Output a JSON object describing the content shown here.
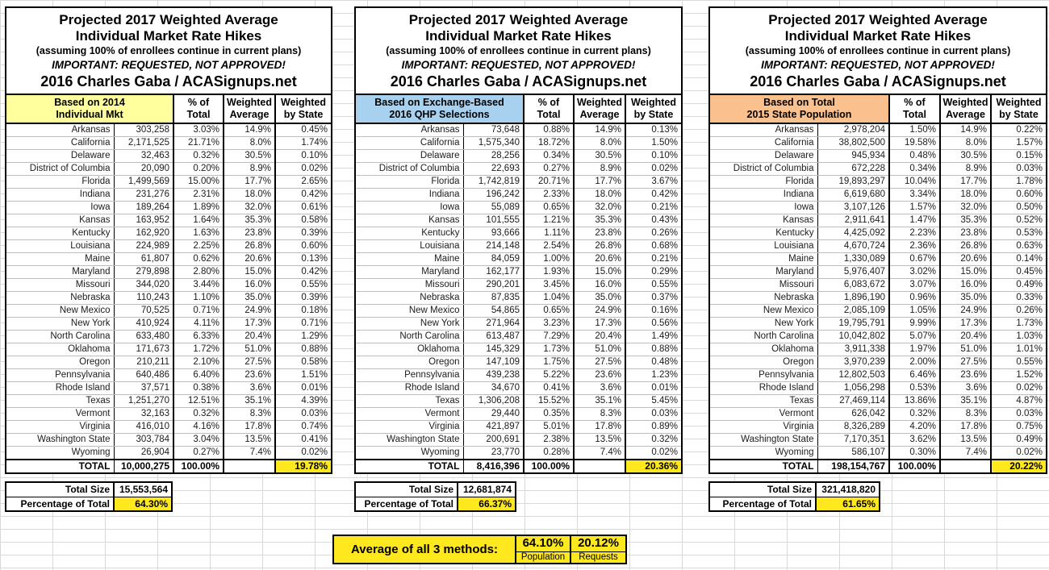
{
  "colors": {
    "highlight_yellow": "#ffe81e",
    "basis_individual_mkt": "#ffff9e",
    "basis_qhp": "#a8d1f0",
    "basis_population": "#fac08e"
  },
  "titles": {
    "line1": "Projected 2017 Weighted Average",
    "line2": "Individual Market Rate Hikes",
    "line3": "(assuming 100% of enrollees continue in current plans)",
    "line4": "IMPORTANT: REQUESTED, NOT APPROVED!",
    "line5": "2016 Charles Gaba / ACASignups.net"
  },
  "columns": {
    "pct": [
      "% of",
      "Total"
    ],
    "wavg": [
      "Weighted",
      "Average"
    ],
    "wstate": [
      "Weighted",
      "by State"
    ]
  },
  "panels": [
    {
      "basis_line1": "Based on 2014",
      "basis_line2": "Individual Mkt",
      "basis_color": "#ffff9e",
      "rows": [
        {
          "state": "Arkansas",
          "size": "303,258",
          "pct": "3.03%",
          "wavg": "14.9%",
          "wstate": "0.45%"
        },
        {
          "state": "California",
          "size": "2,171,525",
          "pct": "21.71%",
          "wavg": "8.0%",
          "wstate": "1.74%"
        },
        {
          "state": "Delaware",
          "size": "32,463",
          "pct": "0.32%",
          "wavg": "30.5%",
          "wstate": "0.10%"
        },
        {
          "state": "District of Columbia",
          "size": "20,090",
          "pct": "0.20%",
          "wavg": "8.9%",
          "wstate": "0.02%"
        },
        {
          "state": "Florida",
          "size": "1,499,569",
          "pct": "15.00%",
          "wavg": "17.7%",
          "wstate": "2.65%"
        },
        {
          "state": "Indiana",
          "size": "231,276",
          "pct": "2.31%",
          "wavg": "18.0%",
          "wstate": "0.42%"
        },
        {
          "state": "Iowa",
          "size": "189,264",
          "pct": "1.89%",
          "wavg": "32.0%",
          "wstate": "0.61%"
        },
        {
          "state": "Kansas",
          "size": "163,952",
          "pct": "1.64%",
          "wavg": "35.3%",
          "wstate": "0.58%"
        },
        {
          "state": "Kentucky",
          "size": "162,920",
          "pct": "1.63%",
          "wavg": "23.8%",
          "wstate": "0.39%"
        },
        {
          "state": "Louisiana",
          "size": "224,989",
          "pct": "2.25%",
          "wavg": "26.8%",
          "wstate": "0.60%"
        },
        {
          "state": "Maine",
          "size": "61,807",
          "pct": "0.62%",
          "wavg": "20.6%",
          "wstate": "0.13%"
        },
        {
          "state": "Maryland",
          "size": "279,898",
          "pct": "2.80%",
          "wavg": "15.0%",
          "wstate": "0.42%"
        },
        {
          "state": "Missouri",
          "size": "344,020",
          "pct": "3.44%",
          "wavg": "16.0%",
          "wstate": "0.55%"
        },
        {
          "state": "Nebraska",
          "size": "110,243",
          "pct": "1.10%",
          "wavg": "35.0%",
          "wstate": "0.39%"
        },
        {
          "state": "New Mexico",
          "size": "70,525",
          "pct": "0.71%",
          "wavg": "24.9%",
          "wstate": "0.18%"
        },
        {
          "state": "New York",
          "size": "410,924",
          "pct": "4.11%",
          "wavg": "17.3%",
          "wstate": "0.71%"
        },
        {
          "state": "North Carolina",
          "size": "633,480",
          "pct": "6.33%",
          "wavg": "20.4%",
          "wstate": "1.29%"
        },
        {
          "state": "Oklahoma",
          "size": "171,673",
          "pct": "1.72%",
          "wavg": "51.0%",
          "wstate": "0.88%"
        },
        {
          "state": "Oregon",
          "size": "210,211",
          "pct": "2.10%",
          "wavg": "27.5%",
          "wstate": "0.58%"
        },
        {
          "state": "Pennsylvania",
          "size": "640,486",
          "pct": "6.40%",
          "wavg": "23.6%",
          "wstate": "1.51%"
        },
        {
          "state": "Rhode Island",
          "size": "37,571",
          "pct": "0.38%",
          "wavg": "3.6%",
          "wstate": "0.01%"
        },
        {
          "state": "Texas",
          "size": "1,251,270",
          "pct": "12.51%",
          "wavg": "35.1%",
          "wstate": "4.39%"
        },
        {
          "state": "Vermont",
          "size": "32,163",
          "pct": "0.32%",
          "wavg": "8.3%",
          "wstate": "0.03%"
        },
        {
          "state": "Virginia",
          "size": "416,010",
          "pct": "4.16%",
          "wavg": "17.8%",
          "wstate": "0.74%"
        },
        {
          "state": "Washington State",
          "size": "303,784",
          "pct": "3.04%",
          "wavg": "13.5%",
          "wstate": "0.41%"
        },
        {
          "state": "Wyoming",
          "size": "26,904",
          "pct": "0.27%",
          "wavg": "7.4%",
          "wstate": "0.02%"
        }
      ],
      "total": {
        "label": "TOTAL",
        "size": "10,000,275",
        "pct": "100.00%",
        "wavg": "",
        "wstate": "19.78%"
      },
      "summary": {
        "size_label": "Total Size",
        "size_value": "15,553,564",
        "pct_label": "Percentage of Total",
        "pct_value": "64.30%"
      }
    },
    {
      "basis_line1": "Based on Exchange-Based",
      "basis_line2": "2016 QHP Selections",
      "basis_color": "#a8d1f0",
      "rows": [
        {
          "state": "Arkansas",
          "size": "73,648",
          "pct": "0.88%",
          "wavg": "14.9%",
          "wstate": "0.13%"
        },
        {
          "state": "California",
          "size": "1,575,340",
          "pct": "18.72%",
          "wavg": "8.0%",
          "wstate": "1.50%"
        },
        {
          "state": "Delaware",
          "size": "28,256",
          "pct": "0.34%",
          "wavg": "30.5%",
          "wstate": "0.10%"
        },
        {
          "state": "District of Columbia",
          "size": "22,693",
          "pct": "0.27%",
          "wavg": "8.9%",
          "wstate": "0.02%"
        },
        {
          "state": "Florida",
          "size": "1,742,819",
          "pct": "20.71%",
          "wavg": "17.7%",
          "wstate": "3.67%"
        },
        {
          "state": "Indiana",
          "size": "196,242",
          "pct": "2.33%",
          "wavg": "18.0%",
          "wstate": "0.42%"
        },
        {
          "state": "Iowa",
          "size": "55,089",
          "pct": "0.65%",
          "wavg": "32.0%",
          "wstate": "0.21%"
        },
        {
          "state": "Kansas",
          "size": "101,555",
          "pct": "1.21%",
          "wavg": "35.3%",
          "wstate": "0.43%"
        },
        {
          "state": "Kentucky",
          "size": "93,666",
          "pct": "1.11%",
          "wavg": "23.8%",
          "wstate": "0.26%"
        },
        {
          "state": "Louisiana",
          "size": "214,148",
          "pct": "2.54%",
          "wavg": "26.8%",
          "wstate": "0.68%"
        },
        {
          "state": "Maine",
          "size": "84,059",
          "pct": "1.00%",
          "wavg": "20.6%",
          "wstate": "0.21%"
        },
        {
          "state": "Maryland",
          "size": "162,177",
          "pct": "1.93%",
          "wavg": "15.0%",
          "wstate": "0.29%"
        },
        {
          "state": "Missouri",
          "size": "290,201",
          "pct": "3.45%",
          "wavg": "16.0%",
          "wstate": "0.55%"
        },
        {
          "state": "Nebraska",
          "size": "87,835",
          "pct": "1.04%",
          "wavg": "35.0%",
          "wstate": "0.37%"
        },
        {
          "state": "New Mexico",
          "size": "54,865",
          "pct": "0.65%",
          "wavg": "24.9%",
          "wstate": "0.16%"
        },
        {
          "state": "New York",
          "size": "271,964",
          "pct": "3.23%",
          "wavg": "17.3%",
          "wstate": "0.56%"
        },
        {
          "state": "North Carolina",
          "size": "613,487",
          "pct": "7.29%",
          "wavg": "20.4%",
          "wstate": "1.49%"
        },
        {
          "state": "Oklahoma",
          "size": "145,329",
          "pct": "1.73%",
          "wavg": "51.0%",
          "wstate": "0.88%"
        },
        {
          "state": "Oregon",
          "size": "147,109",
          "pct": "1.75%",
          "wavg": "27.5%",
          "wstate": "0.48%"
        },
        {
          "state": "Pennsylvania",
          "size": "439,238",
          "pct": "5.22%",
          "wavg": "23.6%",
          "wstate": "1.23%"
        },
        {
          "state": "Rhode Island",
          "size": "34,670",
          "pct": "0.41%",
          "wavg": "3.6%",
          "wstate": "0.01%"
        },
        {
          "state": "Texas",
          "size": "1,306,208",
          "pct": "15.52%",
          "wavg": "35.1%",
          "wstate": "5.45%"
        },
        {
          "state": "Vermont",
          "size": "29,440",
          "pct": "0.35%",
          "wavg": "8.3%",
          "wstate": "0.03%"
        },
        {
          "state": "Virginia",
          "size": "421,897",
          "pct": "5.01%",
          "wavg": "17.8%",
          "wstate": "0.89%"
        },
        {
          "state": "Washington State",
          "size": "200,691",
          "pct": "2.38%",
          "wavg": "13.5%",
          "wstate": "0.32%"
        },
        {
          "state": "Wyoming",
          "size": "23,770",
          "pct": "0.28%",
          "wavg": "7.4%",
          "wstate": "0.02%"
        }
      ],
      "total": {
        "label": "TOTAL",
        "size": "8,416,396",
        "pct": "100.00%",
        "wavg": "",
        "wstate": "20.36%"
      },
      "summary": {
        "size_label": "Total Size",
        "size_value": "12,681,874",
        "pct_label": "Percentage of Total",
        "pct_value": "66.37%"
      }
    },
    {
      "basis_line1": "Based on Total",
      "basis_line2": "2015 State Population",
      "basis_color": "#fac08e",
      "rows": [
        {
          "state": "Arkansas",
          "size": "2,978,204",
          "pct": "1.50%",
          "wavg": "14.9%",
          "wstate": "0.22%"
        },
        {
          "state": "California",
          "size": "38,802,500",
          "pct": "19.58%",
          "wavg": "8.0%",
          "wstate": "1.57%"
        },
        {
          "state": "Delaware",
          "size": "945,934",
          "pct": "0.48%",
          "wavg": "30.5%",
          "wstate": "0.15%"
        },
        {
          "state": "District of Columbia",
          "size": "672,228",
          "pct": "0.34%",
          "wavg": "8.9%",
          "wstate": "0.03%"
        },
        {
          "state": "Florida",
          "size": "19,893,297",
          "pct": "10.04%",
          "wavg": "17.7%",
          "wstate": "1.78%"
        },
        {
          "state": "Indiana",
          "size": "6,619,680",
          "pct": "3.34%",
          "wavg": "18.0%",
          "wstate": "0.60%"
        },
        {
          "state": "Iowa",
          "size": "3,107,126",
          "pct": "1.57%",
          "wavg": "32.0%",
          "wstate": "0.50%"
        },
        {
          "state": "Kansas",
          "size": "2,911,641",
          "pct": "1.47%",
          "wavg": "35.3%",
          "wstate": "0.52%"
        },
        {
          "state": "Kentucky",
          "size": "4,425,092",
          "pct": "2.23%",
          "wavg": "23.8%",
          "wstate": "0.53%"
        },
        {
          "state": "Louisiana",
          "size": "4,670,724",
          "pct": "2.36%",
          "wavg": "26.8%",
          "wstate": "0.63%"
        },
        {
          "state": "Maine",
          "size": "1,330,089",
          "pct": "0.67%",
          "wavg": "20.6%",
          "wstate": "0.14%"
        },
        {
          "state": "Maryland",
          "size": "5,976,407",
          "pct": "3.02%",
          "wavg": "15.0%",
          "wstate": "0.45%"
        },
        {
          "state": "Missouri",
          "size": "6,083,672",
          "pct": "3.07%",
          "wavg": "16.0%",
          "wstate": "0.49%"
        },
        {
          "state": "Nebraska",
          "size": "1,896,190",
          "pct": "0.96%",
          "wavg": "35.0%",
          "wstate": "0.33%"
        },
        {
          "state": "New Mexico",
          "size": "2,085,109",
          "pct": "1.05%",
          "wavg": "24.9%",
          "wstate": "0.26%"
        },
        {
          "state": "New York",
          "size": "19,795,791",
          "pct": "9.99%",
          "wavg": "17.3%",
          "wstate": "1.73%"
        },
        {
          "state": "North Carolina",
          "size": "10,042,802",
          "pct": "5.07%",
          "wavg": "20.4%",
          "wstate": "1.03%"
        },
        {
          "state": "Oklahoma",
          "size": "3,911,338",
          "pct": "1.97%",
          "wavg": "51.0%",
          "wstate": "1.01%"
        },
        {
          "state": "Oregon",
          "size": "3,970,239",
          "pct": "2.00%",
          "wavg": "27.5%",
          "wstate": "0.55%"
        },
        {
          "state": "Pennsylvania",
          "size": "12,802,503",
          "pct": "6.46%",
          "wavg": "23.6%",
          "wstate": "1.52%"
        },
        {
          "state": "Rhode Island",
          "size": "1,056,298",
          "pct": "0.53%",
          "wavg": "3.6%",
          "wstate": "0.02%"
        },
        {
          "state": "Texas",
          "size": "27,469,114",
          "pct": "13.86%",
          "wavg": "35.1%",
          "wstate": "4.87%"
        },
        {
          "state": "Vermont",
          "size": "626,042",
          "pct": "0.32%",
          "wavg": "8.3%",
          "wstate": "0.03%"
        },
        {
          "state": "Virginia",
          "size": "8,326,289",
          "pct": "4.20%",
          "wavg": "17.8%",
          "wstate": "0.75%"
        },
        {
          "state": "Washington State",
          "size": "7,170,351",
          "pct": "3.62%",
          "wavg": "13.5%",
          "wstate": "0.49%"
        },
        {
          "state": "Wyoming",
          "size": "586,107",
          "pct": "0.30%",
          "wavg": "7.4%",
          "wstate": "0.02%"
        }
      ],
      "total": {
        "label": "TOTAL",
        "size": "198,154,767",
        "pct": "100.00%",
        "wavg": "",
        "wstate": "20.22%"
      },
      "summary": {
        "size_label": "Total Size",
        "size_value": "321,418,820",
        "pct_label": "Percentage of Total",
        "pct_value": "61.65%"
      }
    }
  ],
  "footer": {
    "label": "Average of all 3 methods:",
    "population_value": "64.10%",
    "population_label": "Population",
    "requests_value": "20.12%",
    "requests_label": "Requests"
  }
}
